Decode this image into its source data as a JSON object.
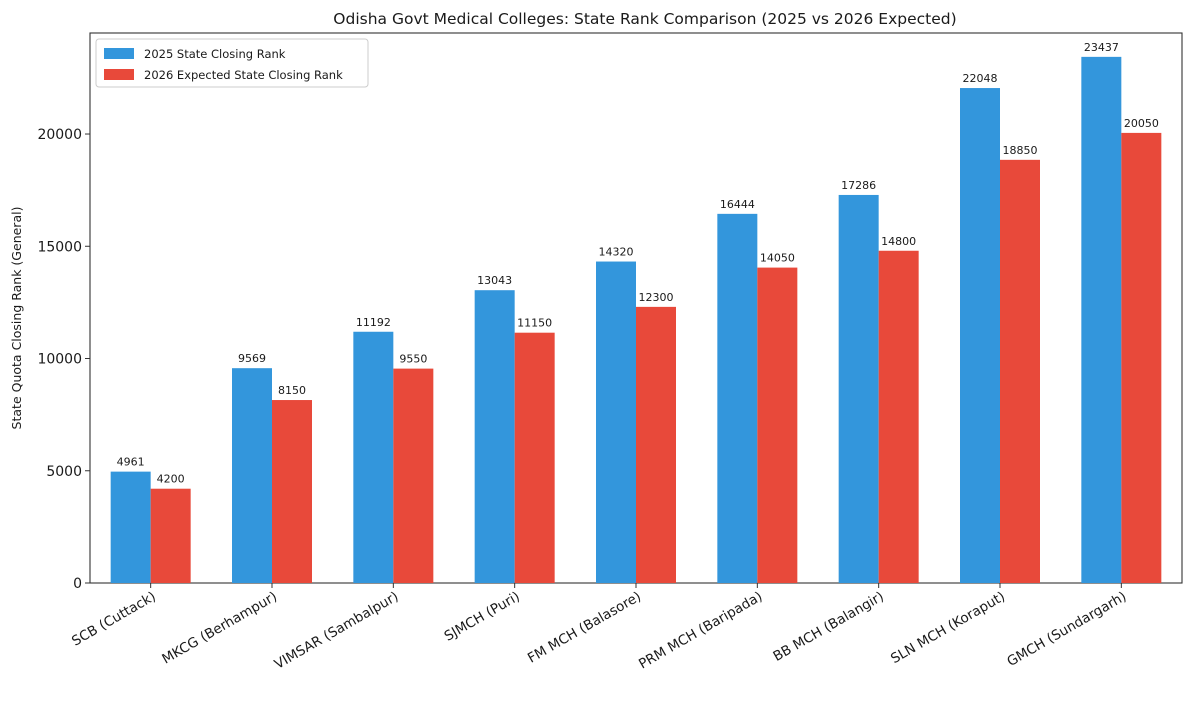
{
  "chart_data": {
    "type": "bar",
    "title": "Odisha Govt Medical Colleges: State Rank Comparison (2025 vs 2026 Expected)",
    "xlabel": "",
    "ylabel": "State Quota Closing Rank (General)",
    "ylim": [
      0,
      24500
    ],
    "yticks": [
      0,
      5000,
      10000,
      15000,
      20000
    ],
    "grid": false,
    "legend_position": "top-left",
    "categories": [
      "SCB (Cuttack)",
      "MKCG (Berhampur)",
      "VIMSAR (Sambalpur)",
      "SJMCH (Puri)",
      "FM MCH (Balasore)",
      "PRM MCH (Baripada)",
      "BB MCH (Balangir)",
      "SLN MCH (Koraput)",
      "GMCH (Sundargarh)"
    ],
    "series": [
      {
        "name": "2025 State Closing Rank",
        "color": "#3396dc",
        "values": [
          4961,
          9569,
          11192,
          13043,
          14320,
          16444,
          17286,
          22048,
          23437
        ]
      },
      {
        "name": "2026 Expected State Closing Rank",
        "color": "#e8493a",
        "values": [
          4200,
          8150,
          9550,
          11150,
          12300,
          14050,
          14800,
          18850,
          20050
        ]
      }
    ]
  }
}
